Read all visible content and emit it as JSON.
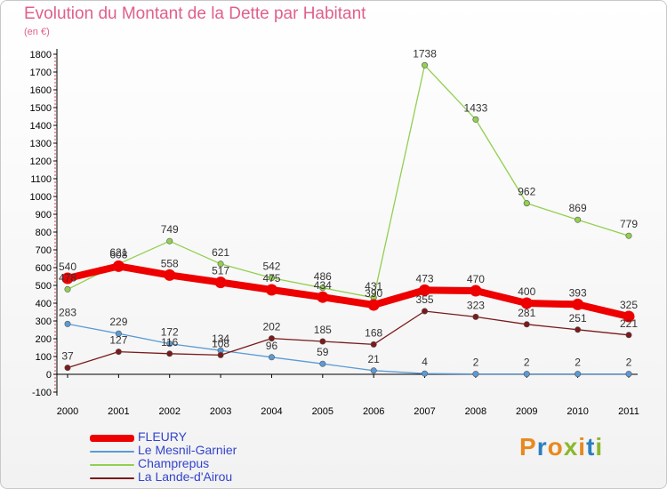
{
  "header": {
    "title": "Evolution du Montant de la Dette par Habitant",
    "subtitle": "(en €)"
  },
  "brand": {
    "letters": [
      "P",
      "r",
      "o",
      "x",
      "i",
      "t",
      "i"
    ],
    "colors": [
      "#e8891e",
      "#2a7fc0",
      "#e8891e",
      "#8ab82c",
      "#e8891e",
      "#2a7fc0",
      "#8ab82c"
    ]
  },
  "chart_data": {
    "type": "line",
    "title": "Evolution du Montant de la Dette par Habitant",
    "subtitle": "(en €)",
    "xlabel": "",
    "ylabel": "",
    "x": [
      "2000",
      "2001",
      "2002",
      "2003",
      "2004",
      "2005",
      "2006",
      "2007",
      "2008",
      "2009",
      "2010",
      "2011"
    ],
    "ylim": [
      -100,
      1800
    ],
    "yticks": [
      -100,
      0,
      100,
      200,
      300,
      400,
      500,
      600,
      700,
      800,
      900,
      1000,
      1100,
      1200,
      1300,
      1400,
      1500,
      1600,
      1700,
      1800
    ],
    "grid": false,
    "legend_position": "bottom-left",
    "series": [
      {
        "name": "FLEURY",
        "color": "#ee0000",
        "values": [
          540,
          608,
          558,
          517,
          475,
          434,
          390,
          473,
          470,
          400,
          393,
          325
        ]
      },
      {
        "name": "Le Mesnil-Garnier",
        "color": "#5b9bd5",
        "values": [
          283,
          229,
          172,
          134,
          96,
          59,
          21,
          4,
          2,
          2,
          2,
          2
        ]
      },
      {
        "name": "Champrepus",
        "color": "#92d050",
        "values": [
          478,
          621,
          749,
          621,
          542,
          486,
          431,
          1738,
          1433,
          962,
          869,
          779
        ]
      },
      {
        "name": "La Lande-d'Airou",
        "color": "#7b1a1a",
        "values": [
          37,
          127,
          116,
          108,
          202,
          185,
          168,
          355,
          323,
          281,
          251,
          221
        ]
      }
    ]
  }
}
